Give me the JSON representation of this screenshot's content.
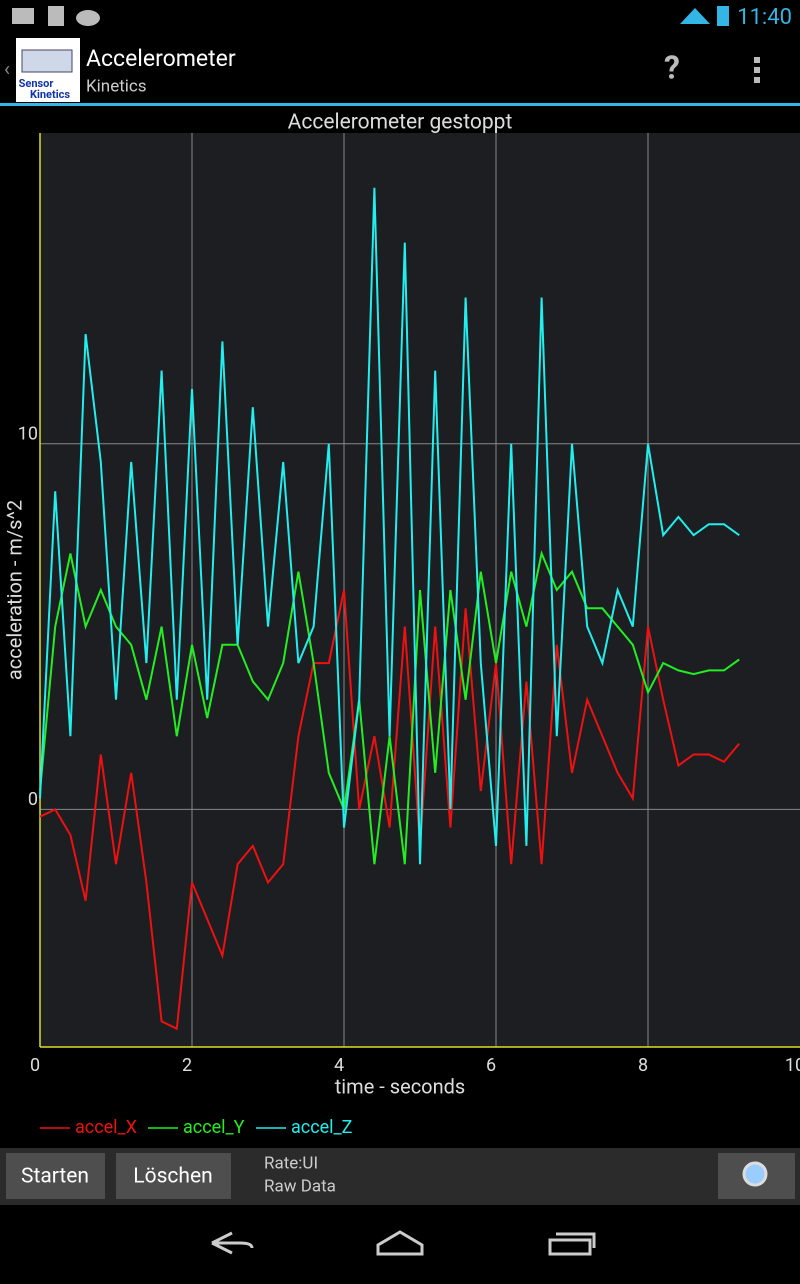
{
  "status_bar": {
    "time": "11:40"
  },
  "action_bar": {
    "title": "Accelerometer",
    "subtitle": "Kinetics",
    "icon_text": [
      "Sensor",
      "Kinetics"
    ],
    "help": "?"
  },
  "chart_data": {
    "type": "line",
    "title": "Accelerometer gestoppt",
    "x_label": "time - seconds",
    "y_label": "acceleration - m/s^2",
    "x": [
      0,
      0.2,
      0.4,
      0.6,
      0.8,
      1.0,
      1.2,
      1.4,
      1.6,
      1.8,
      2.0,
      2.2,
      2.4,
      2.6,
      2.8,
      3.0,
      3.2,
      3.4,
      3.6,
      3.8,
      4.0,
      4.2,
      4.4,
      4.6,
      4.8,
      5.0,
      5.2,
      5.4,
      5.6,
      5.8,
      6.0,
      6.2,
      6.4,
      6.6,
      6.8,
      7.0,
      7.2,
      7.4,
      7.6,
      7.8,
      8.0,
      8.2,
      8.4,
      8.6,
      8.8,
      9.0,
      9.2
    ],
    "series": [
      {
        "name": "accel_X",
        "color": "#ee1111",
        "values": [
          -0.2,
          0,
          -0.7,
          -2.5,
          1.5,
          -1.5,
          1,
          -2,
          -5.8,
          -6,
          -2,
          -3,
          -4,
          -1.5,
          -1,
          -2,
          -1.5,
          2,
          4,
          4,
          6,
          0,
          2,
          -0.5,
          5,
          -1,
          5,
          -0.5,
          5.5,
          0.5,
          4,
          -1.5,
          3.5,
          -1.5,
          4.5,
          1,
          3,
          2,
          1,
          0.3,
          5,
          3,
          1.2,
          1.5,
          1.5,
          1.3,
          1.8
        ]
      },
      {
        "name": "accel_Y",
        "color": "#22ee22",
        "values": [
          0.5,
          5,
          7,
          5,
          6,
          5,
          4.5,
          3,
          5,
          2,
          4.5,
          2.5,
          4.5,
          4.5,
          3.5,
          3,
          4,
          6.5,
          4,
          1,
          0,
          3,
          -1.5,
          2,
          -1.5,
          6,
          1,
          6,
          3,
          6.5,
          4,
          6.5,
          5,
          7,
          6,
          6.5,
          5.5,
          5.5,
          5,
          4.5,
          3.2,
          4,
          3.8,
          3.7,
          3.8,
          3.8,
          4.1
        ]
      },
      {
        "name": "accel_Z",
        "color": "#22eeee",
        "values": [
          0.3,
          8.7,
          2,
          13,
          9.5,
          3,
          9.5,
          4,
          12,
          3,
          11.5,
          3,
          12.8,
          4.5,
          11,
          5,
          9.5,
          4,
          5,
          10,
          -0.5,
          3,
          17,
          2,
          15.5,
          -1.5,
          12,
          0,
          14,
          4,
          -1,
          10,
          -1,
          14,
          2,
          10,
          5,
          4,
          6,
          5,
          10,
          7.5,
          8,
          7.5,
          7.8,
          7.8,
          7.5
        ]
      }
    ],
    "xlim": [
      0,
      10
    ],
    "ylim": [
      -6.5,
      18.5
    ],
    "xticks": [
      0,
      2,
      4,
      6,
      8,
      10
    ],
    "yticks": [
      0,
      10
    ],
    "grid": true
  },
  "toolbar": {
    "buttons": [
      "Starten",
      "Löschen"
    ],
    "info": [
      "Rate:UI",
      "Raw Data"
    ]
  }
}
